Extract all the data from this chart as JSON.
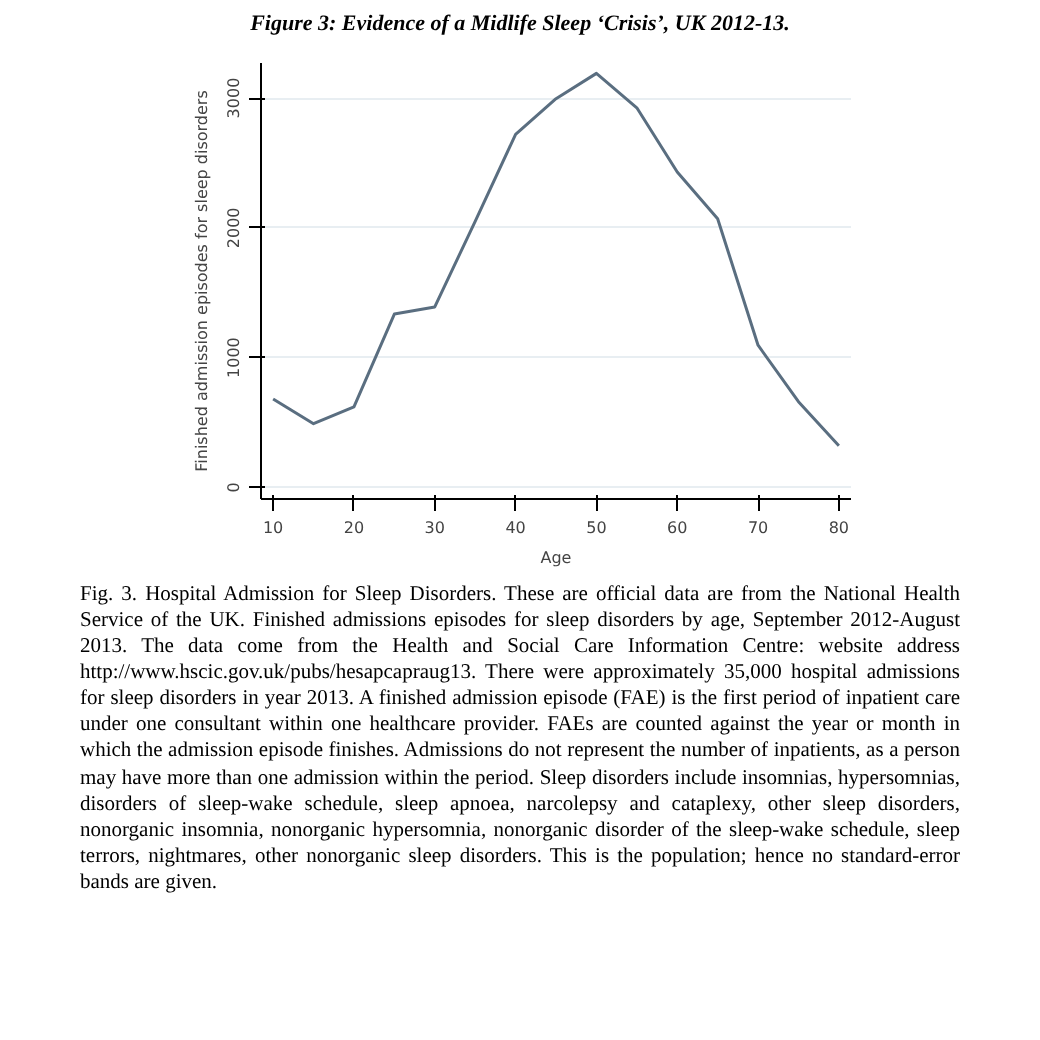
{
  "chart_data": {
    "type": "line",
    "title": "Figure 3: Evidence of a Midlife Sleep ‘Crisis’, UK 2012-13.",
    "xlabel": "Age",
    "ylabel": "Finished admission episodes for sleep disorders",
    "x": [
      10,
      15,
      20,
      25,
      30,
      35,
      40,
      45,
      50,
      55,
      60,
      65,
      70,
      75,
      80
    ],
    "series": [
      {
        "color": "#5a6e80",
        "values": [
          680,
          490,
          620,
          1335,
          1390,
          2050,
          2720,
          2995,
          3190,
          2925,
          2430,
          2070,
          1095,
          660,
          320
        ]
      }
    ],
    "xlim": [
      8.5,
      81.5
    ],
    "ylim": [
      -90,
      3270
    ],
    "xticks": [
      10,
      20,
      30,
      40,
      50,
      60,
      70,
      80
    ],
    "yticks": [
      0,
      1000,
      2000,
      3000
    ],
    "grid": "y",
    "marker": "none",
    "line_style": "solid",
    "annotations": [
      "Fig. 3. Hospital Admission for Sleep Disorders. These are official data are from the National Health Service of the UK. Finished admissions episodes for sleep disorders by age, September 2012-August 2013. The data come from the Health and Social Care Information Centre: website address http://www.hscic.gov.uk/pubs/hesapcapraug13. There were approximately 35,000 hospital admissions for sleep disorders in year 2013. A finished admission episode (FAE) is the first period of inpatient care under one consultant within one healthcare provider. FAEs are counted against the year or month in which the admission episode finishes. Admissions do not represent the number of inpatients, as a person may have more than one admission within the period. Sleep disorders include insomnias, hypersomnias, disorders of sleep-wake schedule, sleep apnoea, narcolepsy and cataplexy, other sleep disorders, nonorganic insomnia, nonorganic hypersomnia, nonorganic disorder of the sleep-wake schedule, sleep terrors, nightmares, other nonorganic sleep disorders. This is the population; hence no standard-error bands are given."
    ]
  }
}
